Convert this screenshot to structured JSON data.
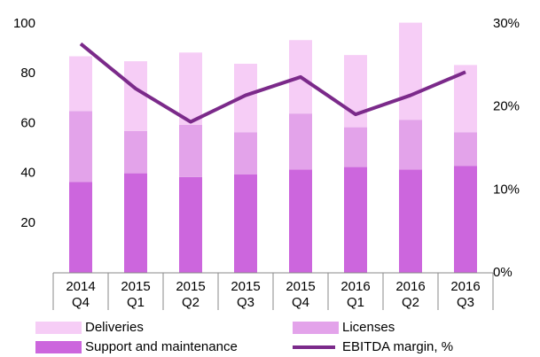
{
  "chart_data": {
    "type": "bar-line",
    "categories": [
      [
        "2014",
        "Q4"
      ],
      [
        "2015",
        "Q1"
      ],
      [
        "2015",
        "Q2"
      ],
      [
        "2015",
        "Q3"
      ],
      [
        "2015",
        "Q4"
      ],
      [
        "2016",
        "Q1"
      ],
      [
        "2016",
        "Q2"
      ],
      [
        "2016",
        "Q3"
      ]
    ],
    "series": [
      {
        "name": "Support and maintenance",
        "color": "#cc66dd",
        "values": [
          36.5,
          40,
          38.5,
          39.5,
          41.5,
          42.5,
          41.5,
          43
        ]
      },
      {
        "name": "Licenses",
        "color": "#e3a3ea",
        "values": [
          28.5,
          17,
          21,
          17,
          22.5,
          16,
          20,
          13.5
        ]
      },
      {
        "name": "Deliveries",
        "color": "#f6cdf6",
        "values": [
          22,
          28,
          29,
          27.5,
          29.5,
          29,
          39,
          27
        ]
      },
      {
        "name": "EBITDA margin, %",
        "color": "#7b2a8a",
        "axis": "y2",
        "values": [
          27.6,
          22.2,
          18.2,
          21.4,
          23.6,
          19.1,
          21.4,
          24.2
        ]
      }
    ],
    "ylim": [
      0,
      100
    ],
    "yticks": [
      20,
      40,
      60,
      80,
      100
    ],
    "y2lim": [
      0,
      30
    ],
    "y2ticks": [
      {
        "value": 0,
        "label": "0%"
      },
      {
        "value": 10,
        "label": "10%"
      },
      {
        "value": 20,
        "label": "20%"
      },
      {
        "value": 30,
        "label": "30%"
      }
    ],
    "legend": "bottom"
  }
}
